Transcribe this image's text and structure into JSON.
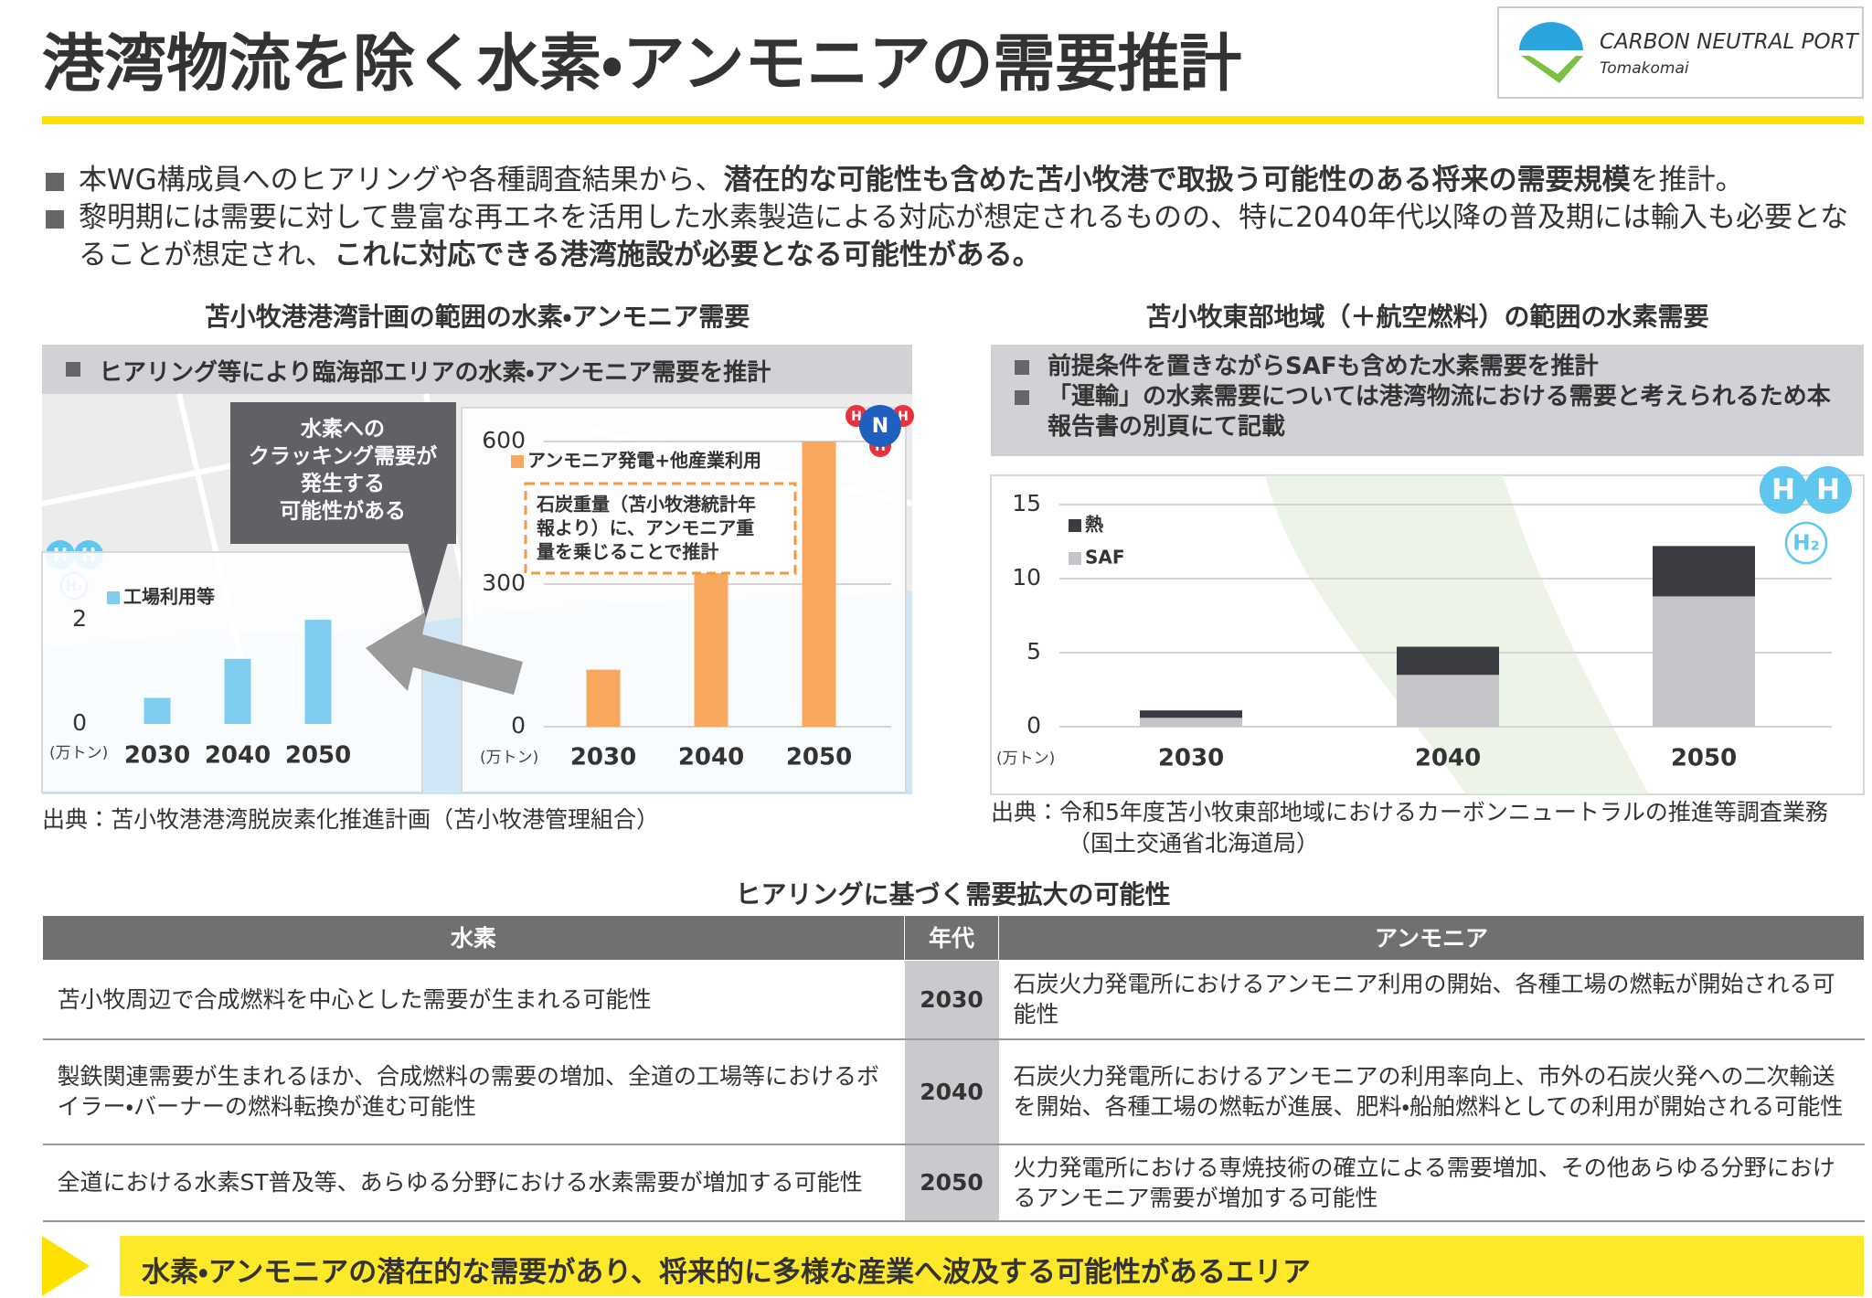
{
  "header": {
    "title": "港湾物流を除く水素・アンモニアの需要推計",
    "logo_line1": "CARBON NEUTRAL PORT",
    "logo_line2": "Tomakomai"
  },
  "bullets": [
    [
      {
        "text": "本WG構成員へのヒアリングや各種調査結果から、"
      },
      {
        "text": "潜在的な可能性も含めた苫小牧港で取扱う可能性のある将来の需要規模",
        "bold": true
      },
      {
        "text": "を推計。"
      }
    ],
    [
      {
        "text": "黎明期には需要に対して豊富な再エネを活用した水素製造による対応が想定されるものの、特に2040年代以降の普及期には輸入も必要となることが想定され、"
      },
      {
        "text": "これに対応できる港湾施設が必要となる可能性がある。",
        "bold": true
      }
    ]
  ],
  "left_panel": {
    "heading": "苫小牧港港湾計画の範囲の水素・アンモニア需要",
    "banner": "ヒアリング等により臨海部エリアの水素・アンモニア需要を推計",
    "callout": [
      "水素への",
      "クラッキング需要が",
      "発生する",
      "可能性がある"
    ],
    "source": "出典：苫小牧港港湾脱炭素化推進計画（苫小牧港管理組合）"
  },
  "right_panel": {
    "heading": "苫小牧東部地域（＋航空燃料）の範囲の水素需要",
    "banner": [
      "前提条件を置きながらSAFも含めた水素需要を推計",
      "「運輸」の水素需要については港湾物流における需要と考えられるため本報告書の別頁にて記載"
    ],
    "source": "出典：令和5年度苫小牧東部地域におけるカーボンニュートラルの推進等調査業務（国土交通省北海道局）"
  },
  "icons": {
    "h": "H",
    "n": "N",
    "h2": "H₂"
  },
  "chart_data": [
    {
      "type": "bar",
      "unit": "(万トン)",
      "categories": [
        "2030",
        "2040",
        "2050"
      ],
      "series": [
        {
          "name": "工場利用等",
          "color": "#7fcef0",
          "values": [
            0.5,
            1.25,
            2
          ]
        }
      ],
      "ylim": [
        0,
        3
      ],
      "yticks": [
        0,
        2
      ],
      "grid": false
    },
    {
      "type": "bar",
      "unit": "(万トン)",
      "categories": [
        "2030",
        "2040",
        "2050"
      ],
      "series": [
        {
          "name": "アンモニア発電+他産業利用",
          "color": "#f8a95e",
          "values": [
            120,
            330,
            600
          ]
        }
      ],
      "ylim": [
        0,
        600
      ],
      "yticks": [
        0,
        300,
        600
      ],
      "grid": true,
      "annotation": [
        "石炭重量（苫小牧港統計年",
        "報より）に、アンモニア重",
        "量を乗じることで推計"
      ]
    },
    {
      "type": "stacked_bar",
      "unit": "(万トン)",
      "categories": [
        "2030",
        "2040",
        "2050"
      ],
      "series": [
        {
          "name": "SAF",
          "color": "#c4c4c9",
          "values": [
            0.6,
            3.5,
            8.8
          ]
        },
        {
          "name": "熱",
          "color": "#3b3b42",
          "values": [
            0.5,
            1.9,
            3.4
          ]
        }
      ],
      "ylim": [
        0,
        15
      ],
      "yticks": [
        0,
        5,
        10,
        15
      ],
      "grid": true
    }
  ],
  "table": {
    "title": "ヒアリングに基づく需要拡大の可能性",
    "header": [
      "水素",
      "年代",
      "アンモニア"
    ],
    "rows": [
      [
        "苫小牧周辺で合成燃料を中心とした需要が生まれる可能性",
        "2030",
        "石炭火力発電所におけるアンモニア利用の開始、各種工場の燃転が開始される可能性"
      ],
      [
        "製鉄関連需要が生まれるほか、合成燃料の需要の増加、全道の工場等におけるボイラー・バーナーの燃料転換が進む可能性",
        "2040",
        "石炭火力発電所におけるアンモニアの利用率向上、市外の石炭火発への二次輸送を開始、各種工場の燃転が進展、肥料・船舶燃料としての利用が開始される可能性"
      ],
      [
        "全道における水素ST普及等、あらゆる分野における水素需要が増加する可能性",
        "2050",
        "火力発電所における専焼技術の確立による需要増加、その他あらゆる分野におけるアンモニア需要が増加する可能性"
      ]
    ]
  },
  "conclusion": "水素・アンモニアの潜在的な需要があり、将来的に多様な産業へ波及する可能性があるエリア"
}
